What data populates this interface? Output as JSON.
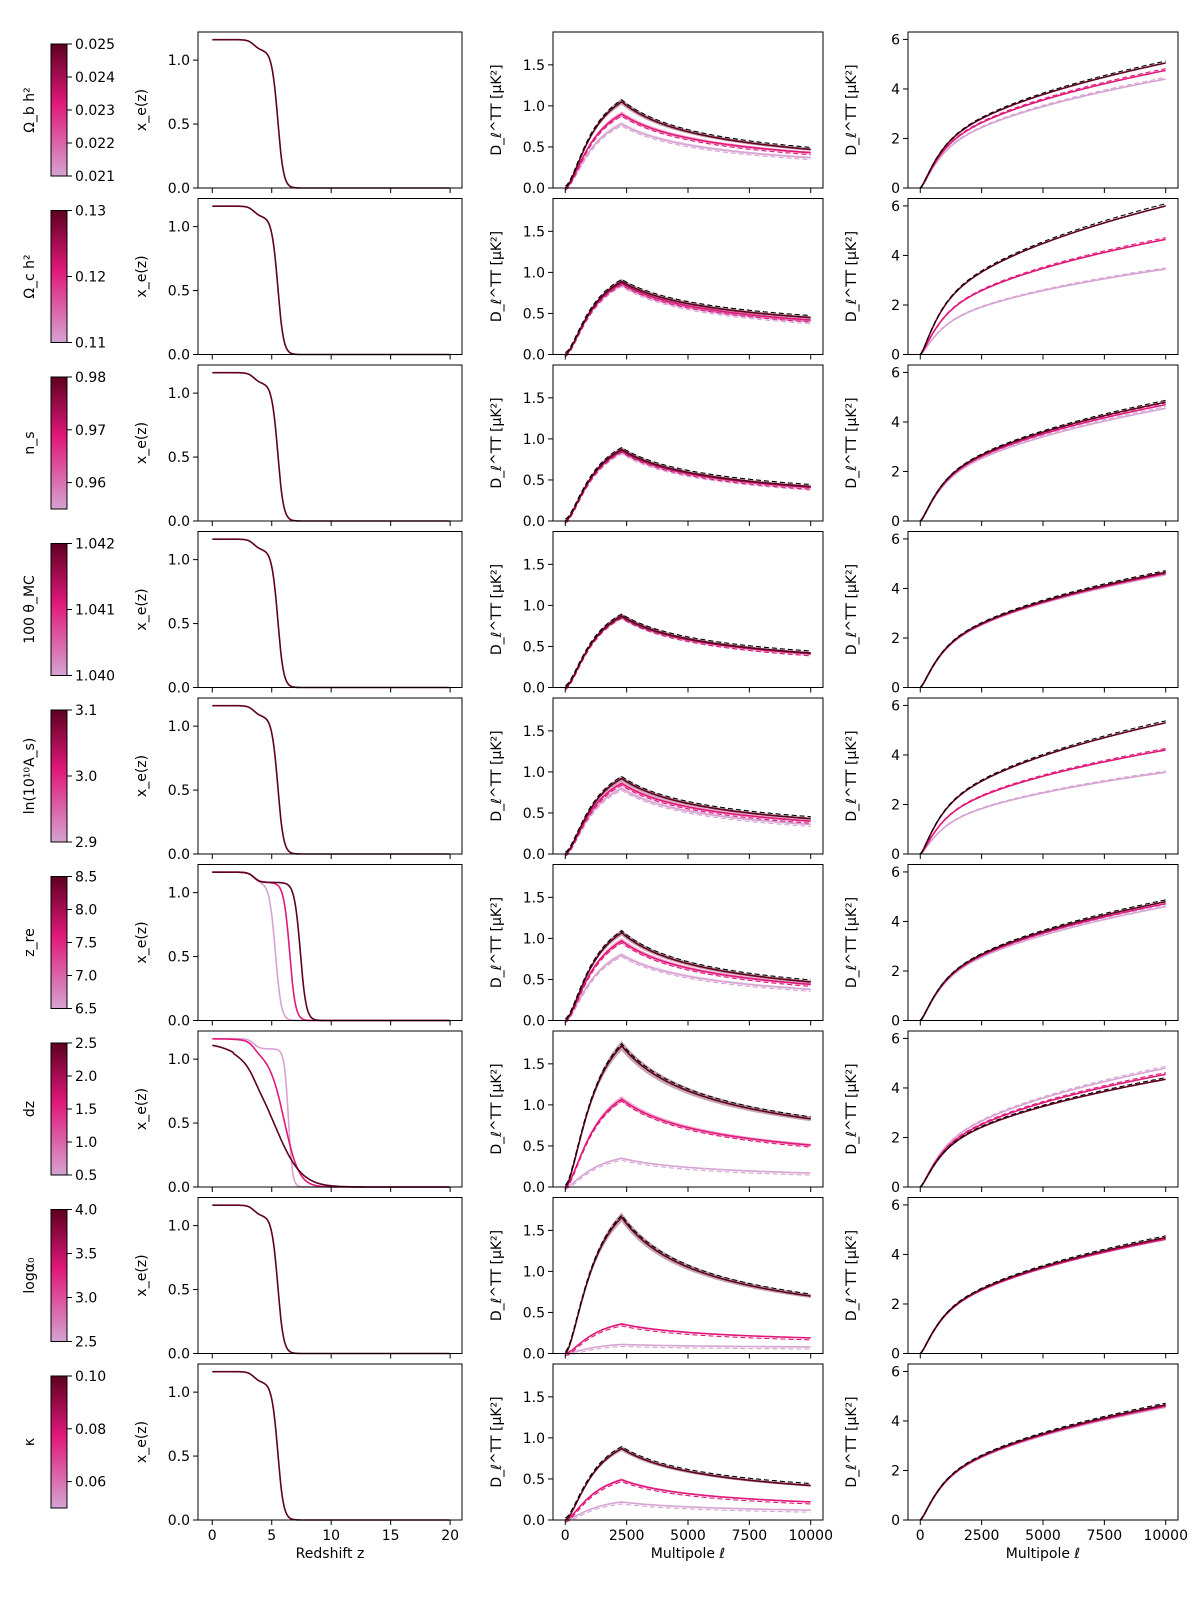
{
  "colors": {
    "light": "#d6a3d2",
    "mid": "#e0187a",
    "dark": "#5e0020",
    "band": "#c48a99"
  },
  "xaxes": {
    "redshift": {
      "label": "Redshift z",
      "ticks": [
        0,
        5,
        10,
        15,
        20
      ],
      "tick_labels": [
        "0",
        "5",
        "10",
        "15",
        "20"
      ],
      "xlim": [
        -1.2,
        21
      ]
    },
    "multipole": {
      "label": "Multipole ℓ",
      "ticks": [
        0,
        2500,
        5000,
        7500,
        10000
      ],
      "tick_labels": [
        "0",
        "2500",
        "5000",
        "7500",
        "10000"
      ],
      "xlim": [
        -500,
        10500
      ]
    }
  },
  "yaxes": {
    "xe": {
      "label": "x_e(z)",
      "ticks": [
        0,
        0.5,
        1.0
      ],
      "tick_labels": [
        "0.0",
        "0.5",
        "1.0"
      ],
      "ylim": [
        0,
        1.22
      ]
    },
    "ksz_diff": {
      "label": "D_ℓ^TT [μK²]",
      "ticks": [
        0,
        0.5,
        1.0,
        1.5
      ],
      "tick_labels": [
        "0.0",
        "0.5",
        "1.0",
        "1.5"
      ],
      "ylim": [
        0,
        1.9
      ]
    },
    "ksz_cum": {
      "label": "D_ℓ^TT [μK²]",
      "ticks": [
        0,
        2,
        4,
        6
      ],
      "tick_labels": [
        "0",
        "2",
        "4",
        "6"
      ],
      "ylim": [
        0,
        6.3
      ]
    }
  },
  "chart_data": [
    {
      "type": "line",
      "param": "Ω_b h²",
      "colorbar": {
        "ticks": [
          0.021,
          0.022,
          0.023,
          0.024,
          0.025
        ],
        "tick_labels": [
          "0.021",
          "0.022",
          "0.023",
          "0.024",
          "0.025"
        ],
        "range": [
          0.021,
          0.025
        ]
      },
      "xe": [
        {
          "zre": 5.5,
          "dz": 0.5
        }
      ],
      "ksz_diff_peak": [
        0.78,
        0.9,
        1.05
      ],
      "ksz_diff_tail": [
        0.37,
        0.43,
        0.47
      ],
      "ksz_cum_end": [
        4.4,
        4.75,
        5.05
      ]
    },
    {
      "type": "line",
      "param": "Ω_c h²",
      "colorbar": {
        "ticks": [
          0.11,
          0.12,
          0.13
        ],
        "tick_labels": [
          "0.11",
          "0.12",
          "0.13"
        ],
        "range": [
          0.11,
          0.13
        ]
      },
      "xe": [
        {
          "zre": 5.5,
          "dz": 0.5
        }
      ],
      "ksz_diff_peak": [
        0.85,
        0.87,
        0.89
      ],
      "ksz_diff_tail": [
        0.4,
        0.42,
        0.45
      ],
      "ksz_cum_end": [
        3.45,
        4.65,
        6.0
      ]
    },
    {
      "type": "line",
      "param": "n_s",
      "colorbar": {
        "ticks": [
          0.96,
          0.97,
          0.98
        ],
        "tick_labels": [
          "0.96",
          "0.97",
          "0.98"
        ],
        "range": [
          0.955,
          0.98
        ]
      },
      "xe": [
        {
          "zre": 5.5,
          "dz": 0.5
        }
      ],
      "ksz_diff_peak": [
        0.84,
        0.86,
        0.87
      ],
      "ksz_diff_tail": [
        0.4,
        0.41,
        0.42
      ],
      "ksz_cum_end": [
        4.55,
        4.7,
        4.8
      ]
    },
    {
      "type": "line",
      "param": "100 θ_MC",
      "colorbar": {
        "ticks": [
          1.04,
          1.041,
          1.042
        ],
        "tick_labels": [
          "1.040",
          "1.041",
          "1.042"
        ],
        "range": [
          1.04,
          1.042
        ]
      },
      "xe": [
        {
          "zre": 5.5,
          "dz": 0.5
        }
      ],
      "ksz_diff_peak": [
        0.86,
        0.87,
        0.87
      ],
      "ksz_diff_tail": [
        0.41,
        0.41,
        0.42
      ],
      "ksz_cum_end": [
        4.55,
        4.6,
        4.65
      ]
    },
    {
      "type": "line",
      "param": "ln(10¹⁰A_s)",
      "colorbar": {
        "ticks": [
          2.9,
          3.0,
          3.1
        ],
        "tick_labels": [
          "2.9",
          "3.0",
          "3.1"
        ],
        "range": [
          2.9,
          3.1
        ]
      },
      "xe": [
        {
          "zre": 5.5,
          "dz": 0.5
        }
      ],
      "ksz_diff_peak": [
        0.8,
        0.86,
        0.92
      ],
      "ksz_diff_tail": [
        0.36,
        0.4,
        0.43
      ],
      "ksz_cum_end": [
        3.3,
        4.2,
        5.3
      ]
    },
    {
      "type": "line",
      "param": "z_re",
      "colorbar": {
        "ticks": [
          6.5,
          7.0,
          7.5,
          8.0,
          8.5
        ],
        "tick_labels": [
          "6.5",
          "7.0",
          "7.5",
          "8.0",
          "8.5"
        ],
        "range": [
          6.5,
          8.5
        ]
      },
      "xe": [
        {
          "zre": 5.3,
          "dz": 0.5
        },
        {
          "zre": 6.5,
          "dz": 0.5
        },
        {
          "zre": 7.4,
          "dz": 0.5
        }
      ],
      "ksz_diff_peak": [
        0.8,
        0.97,
        1.07
      ],
      "ksz_diff_tail": [
        0.38,
        0.44,
        0.47
      ],
      "ksz_cum_end": [
        4.6,
        4.72,
        4.8
      ]
    },
    {
      "type": "line",
      "param": "dz",
      "colorbar": {
        "ticks": [
          0.5,
          1.0,
          1.5,
          2.0,
          2.5
        ],
        "tick_labels": [
          "0.5",
          "1.0",
          "1.5",
          "2.0",
          "2.5"
        ],
        "range": [
          0.5,
          2.5
        ]
      },
      "xe": [
        {
          "zre": 6.4,
          "dz": 0.35
        },
        {
          "zre": 6.0,
          "dz": 1.3
        },
        {
          "zre": 5.0,
          "dz": 2.5
        }
      ],
      "ksz_diff_peak": [
        0.35,
        1.07,
        1.72
      ],
      "ksz_diff_tail": [
        0.17,
        0.51,
        0.83
      ],
      "ksz_cum_end": [
        4.8,
        4.55,
        4.35
      ]
    },
    {
      "type": "line",
      "param": "logα₀",
      "colorbar": {
        "ticks": [
          2.5,
          3.0,
          3.5,
          4.0
        ],
        "tick_labels": [
          "2.5",
          "3.0",
          "3.5",
          "4.0"
        ],
        "range": [
          2.5,
          4.0
        ]
      },
      "xe": [
        {
          "zre": 5.5,
          "dz": 0.5
        }
      ],
      "ksz_diff_peak": [
        0.11,
        0.36,
        1.66
      ],
      "ksz_diff_tail": [
        0.08,
        0.19,
        0.7
      ],
      "ksz_cum_end": [
        4.6,
        4.62,
        4.68
      ]
    },
    {
      "type": "line",
      "param": "κ",
      "colorbar": {
        "ticks": [
          0.06,
          0.08,
          0.1
        ],
        "tick_labels": [
          "0.06",
          "0.08",
          "0.10"
        ],
        "range": [
          0.05,
          0.1
        ]
      },
      "xe": [
        {
          "zre": 5.5,
          "dz": 0.5
        }
      ],
      "ksz_diff_peak": [
        0.22,
        0.49,
        0.87
      ],
      "ksz_diff_tail": [
        0.12,
        0.22,
        0.42
      ],
      "ksz_cum_end": [
        4.55,
        4.6,
        4.65
      ]
    }
  ]
}
